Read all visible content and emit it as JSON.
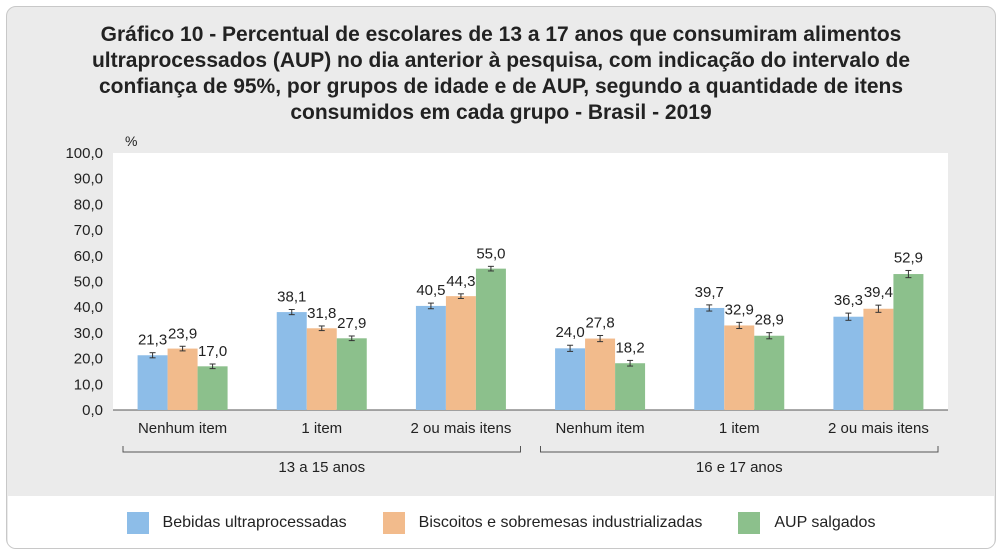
{
  "chart_data": {
    "type": "bar",
    "title": "Gráfico 10 - Percentual de escolares de 13 a 17 anos que consumiram alimentos ultraprocessados (AUP) no dia anterior à pesquisa, com indicação do intervalo de confiança de 95%, por grupos de idade e de AUP, segundo a quantidade de itens consumidos em cada grupo - Brasil - 2019",
    "ylabel": "%",
    "ylim": [
      0,
      100
    ],
    "yticks": [
      "0,0",
      "10,0",
      "20,0",
      "30,0",
      "40,0",
      "50,0",
      "60,0",
      "70,0",
      "80,0",
      "90,0",
      "100,0"
    ],
    "grid": false,
    "legend_position": "bottom",
    "categories": [
      "Nenhum item",
      "1 item",
      "2 ou mais itens",
      "Nenhum item",
      "1 item",
      "2 ou mais itens"
    ],
    "groups": [
      {
        "label": "13 a 15 anos",
        "categories": [
          0,
          1,
          2
        ]
      },
      {
        "label": "16 e 17 anos",
        "categories": [
          3,
          4,
          5
        ]
      }
    ],
    "series": [
      {
        "name": "Bebidas ultraprocessadas",
        "color": "#8dbde8",
        "values": [
          21.3,
          38.1,
          40.5,
          24.0,
          39.7,
          36.3
        ],
        "labels": [
          "21,3",
          "38,1",
          "40,5",
          "24,0",
          "39,7",
          "36,3"
        ],
        "errors": [
          1.0,
          1.0,
          1.1,
          1.2,
          1.2,
          1.4
        ]
      },
      {
        "name": "Biscoitos e sobremesas industrializadas",
        "color": "#f2bb8c",
        "values": [
          23.9,
          31.8,
          44.3,
          27.8,
          32.9,
          39.4
        ],
        "labels": [
          "23,9",
          "31,8",
          "44,3",
          "27,8",
          "32,9",
          "39,4"
        ],
        "errors": [
          0.9,
          0.9,
          0.9,
          1.2,
          1.2,
          1.4
        ]
      },
      {
        "name": "AUP salgados",
        "color": "#8cc08c",
        "values": [
          17.0,
          27.9,
          55.0,
          18.2,
          28.9,
          52.9
        ],
        "labels": [
          "17,0",
          "27,9",
          "55,0",
          "18,2",
          "28,9",
          "52,9"
        ],
        "errors": [
          0.9,
          0.9,
          0.9,
          1.1,
          1.2,
          1.4
        ]
      }
    ]
  }
}
